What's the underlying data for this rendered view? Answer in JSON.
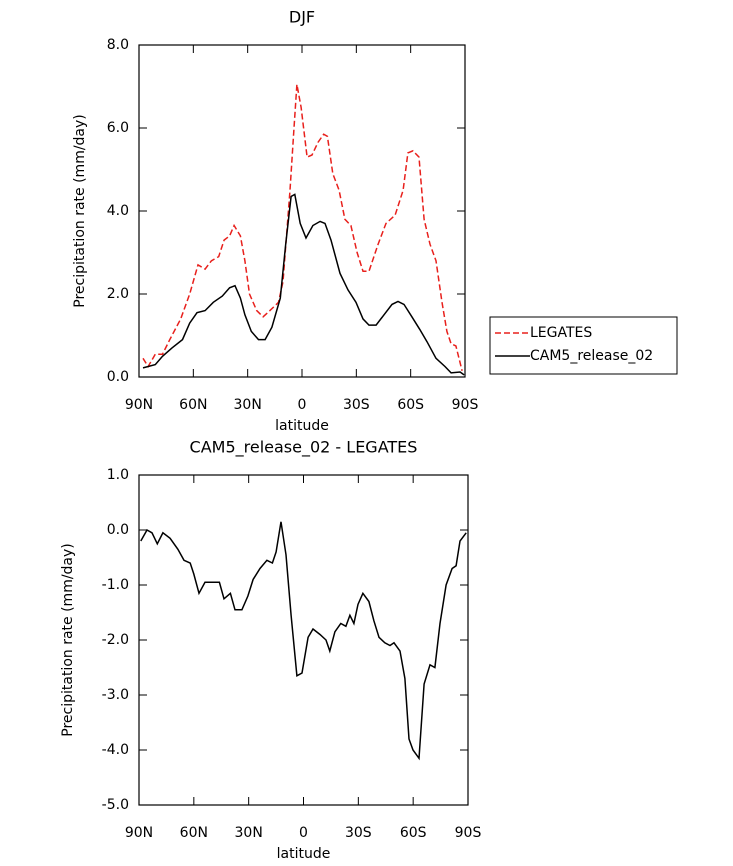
{
  "chart_data": [
    {
      "type": "line",
      "title": "DJF",
      "x_label": "latitude",
      "y_label": "Precipitation rate (mm/day)",
      "xlim": [
        90,
        -90
      ],
      "xticks": [
        {
          "value": 90,
          "label": "90N"
        },
        {
          "value": 60,
          "label": "60N"
        },
        {
          "value": 30,
          "label": "30N"
        },
        0,
        {
          "value": -30,
          "label": "30S"
        },
        {
          "value": -60,
          "label": "60S"
        },
        {
          "value": -90,
          "label": "90S"
        }
      ],
      "ylim": [
        0,
        8
      ],
      "yticks": [
        {
          "value": 0,
          "label": "0.0"
        },
        {
          "value": 2,
          "label": "2.0"
        },
        {
          "value": 4,
          "label": "4.0"
        },
        {
          "value": 6,
          "label": "6.0"
        },
        {
          "value": 8,
          "label": "8.0"
        }
      ],
      "legend": "outside-right",
      "series": [
        {
          "name": "LEGATES",
          "color": "#e8201c",
          "dashed": true,
          "x": [
            87.8,
            85,
            81,
            77,
            73,
            67,
            62,
            57.4,
            53.5,
            50,
            46,
            43,
            40,
            37.5,
            34,
            31.5,
            29,
            25,
            21.5,
            17.7,
            13,
            10.5,
            6.6,
            4.4,
            2.8,
            0.5,
            -2.8,
            -5.5,
            -8.8,
            -12,
            -14,
            -17,
            -20.5,
            -23.7,
            -27,
            -30.4,
            -33.7,
            -37,
            -42,
            -46.4,
            -51.4,
            -55.8,
            -58.5,
            -61.3,
            -64.6,
            -67.4,
            -70.7,
            -74,
            -77.3,
            -80,
            -82.3,
            -85,
            -88.4
          ],
          "values": [
            0.45,
            0.25,
            0.55,
            0.55,
            0.9,
            1.4,
            2.0,
            2.7,
            2.6,
            2.8,
            2.9,
            3.3,
            3.4,
            3.65,
            3.4,
            2.8,
            2.0,
            1.6,
            1.45,
            1.6,
            1.8,
            2.3,
            4.5,
            6.0,
            7.05,
            6.5,
            5.3,
            5.35,
            5.65,
            5.85,
            5.8,
            4.9,
            4.5,
            3.8,
            3.65,
            3.0,
            2.55,
            2.55,
            3.2,
            3.7,
            3.9,
            4.5,
            5.4,
            5.45,
            5.3,
            3.8,
            3.2,
            2.8,
            1.8,
            1.1,
            0.8,
            0.75,
            0.15
          ]
        },
        {
          "name": "CAM5_release_02",
          "color": "#000000",
          "dashed": false,
          "x": [
            87.8,
            81,
            77,
            71.8,
            66,
            62,
            58,
            53.5,
            49,
            44,
            40,
            37,
            34,
            31.5,
            28,
            24,
            20.4,
            16.6,
            12,
            9,
            6,
            4,
            1,
            -2.2,
            -6,
            -10,
            -12.7,
            -16,
            -21,
            -25.4,
            -29.8,
            -33.7,
            -37,
            -40.9,
            -45.3,
            -49.7,
            -53,
            -56.3,
            -60.7,
            -65,
            -69,
            -74,
            -79,
            -82.3,
            -87.3,
            -89.5
          ],
          "values": [
            0.22,
            0.3,
            0.5,
            0.7,
            0.9,
            1.3,
            1.55,
            1.6,
            1.8,
            1.95,
            2.15,
            2.2,
            1.9,
            1.5,
            1.1,
            0.9,
            0.9,
            1.2,
            1.9,
            3.2,
            4.35,
            4.4,
            3.7,
            3.35,
            3.65,
            3.75,
            3.7,
            3.3,
            2.5,
            2.1,
            1.8,
            1.4,
            1.25,
            1.25,
            1.5,
            1.75,
            1.82,
            1.75,
            1.45,
            1.15,
            0.85,
            0.45,
            0.25,
            0.1,
            0.12,
            0.05
          ]
        }
      ]
    },
    {
      "type": "line",
      "title": "CAM5_release_02 - LEGATES",
      "x_label": "latitude",
      "y_label": "Precipitation rate (mm/day)",
      "xlim": [
        90,
        -90
      ],
      "xticks": [
        {
          "value": 90,
          "label": "90N"
        },
        {
          "value": 60,
          "label": "60N"
        },
        {
          "value": 30,
          "label": "30N"
        },
        0,
        {
          "value": -30,
          "label": "30S"
        },
        {
          "value": -60,
          "label": "60S"
        },
        {
          "value": -90,
          "label": "90S"
        }
      ],
      "ylim": [
        -5,
        1
      ],
      "yticks": [
        {
          "value": -5,
          "label": "-5.0"
        },
        {
          "value": -4,
          "label": "-4.0"
        },
        {
          "value": -3,
          "label": "-3.0"
        },
        {
          "value": -2,
          "label": "-2.0"
        },
        {
          "value": -1,
          "label": "-1.0"
        },
        {
          "value": 0,
          "label": "0.0"
        },
        {
          "value": 1,
          "label": "1.0"
        }
      ],
      "series": [
        {
          "color": "#000000",
          "dashed": false,
          "x": [
            89,
            85.6,
            82.9,
            80,
            76.9,
            73,
            68.7,
            65.4,
            62,
            60,
            57.2,
            53.9,
            50,
            46,
            43.5,
            40,
            37.5,
            33.7,
            30.4,
            27.6,
            23.8,
            20,
            17,
            15,
            12.3,
            9.6,
            6.8,
            3.6,
            0.8,
            -2.5,
            -5.2,
            -9,
            -12.3,
            -14.4,
            -17.2,
            -20.4,
            -23.2,
            -25.4,
            -27.6,
            -29.8,
            -32.5,
            -35.8,
            -38.5,
            -41.3,
            -44.5,
            -47.3,
            -49.5,
            -52.8,
            -55.5,
            -57.7,
            -59.9,
            -63.2,
            -66,
            -69.2,
            -71.9,
            -74.7,
            -78,
            -81.3,
            -83.5,
            -85.6,
            -89
          ],
          "values": [
            -0.2,
            0.0,
            -0.05,
            -0.25,
            -0.05,
            -0.15,
            -0.35,
            -0.55,
            -0.6,
            -0.8,
            -1.15,
            -0.95,
            -0.95,
            -0.95,
            -1.25,
            -1.15,
            -1.45,
            -1.45,
            -1.2,
            -0.9,
            -0.7,
            -0.55,
            -0.6,
            -0.4,
            0.15,
            -0.45,
            -1.55,
            -2.65,
            -2.6,
            -1.95,
            -1.8,
            -1.9,
            -2.0,
            -2.2,
            -1.85,
            -1.7,
            -1.75,
            -1.55,
            -1.7,
            -1.35,
            -1.15,
            -1.3,
            -1.65,
            -1.95,
            -2.05,
            -2.1,
            -2.05,
            -2.2,
            -2.7,
            -3.8,
            -4.0,
            -4.15,
            -2.8,
            -2.45,
            -2.5,
            -1.7,
            -1.0,
            -0.7,
            -0.65,
            -0.2,
            -0.05
          ]
        }
      ]
    }
  ]
}
